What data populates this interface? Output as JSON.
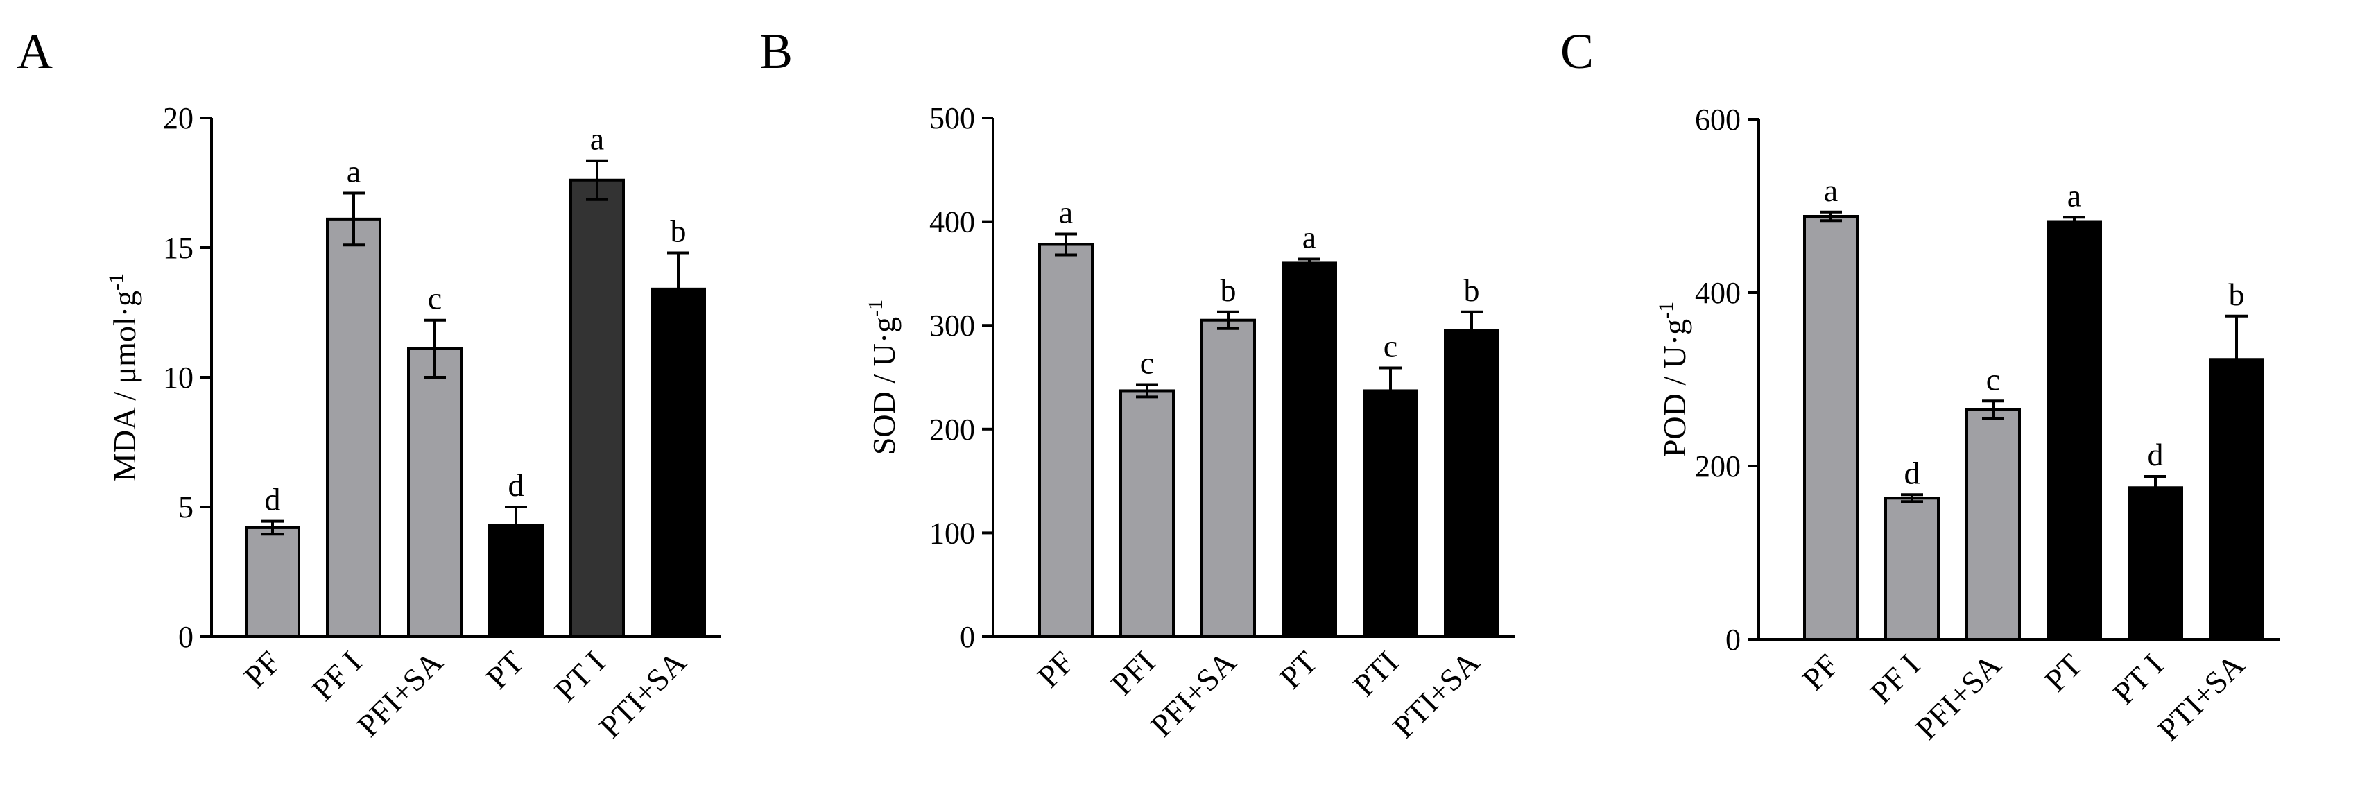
{
  "chart_data": [
    {
      "type": "bar",
      "panel_label": "A",
      "ylabel": "MDA / μmol·g",
      "ylabel_superscript": "-1",
      "categories": [
        "PF",
        "PF I",
        "PFI+SA",
        "PT",
        "PT I",
        "PTI+SA"
      ],
      "values": [
        4.2,
        16.1,
        11.1,
        4.3,
        17.6,
        13.4
      ],
      "errors": [
        0.25,
        1.0,
        1.1,
        0.7,
        0.75,
        1.4
      ],
      "significance": [
        "d",
        "a",
        "c",
        "d",
        "a",
        "b"
      ],
      "bar_colors": [
        "#a0a0a4",
        "#a0a0a4",
        "#a0a0a4",
        "#000000",
        "#333333",
        "#000000"
      ],
      "ylim": [
        0,
        20
      ],
      "yticks": [
        0,
        5,
        10,
        15,
        20
      ]
    },
    {
      "type": "bar",
      "panel_label": "B",
      "ylabel": "SOD / U·g",
      "ylabel_superscript": "-1",
      "categories": [
        "PF",
        "PFI",
        "PFI+SA",
        "PT",
        "PTI",
        "PTI+SA"
      ],
      "values": [
        378,
        237,
        305,
        360,
        237,
        295
      ],
      "errors": [
        10,
        6,
        8,
        4,
        22,
        18
      ],
      "significance": [
        "a",
        "c",
        "b",
        "a",
        "c",
        "b"
      ],
      "bar_colors": [
        "#a0a0a4",
        "#a0a0a4",
        "#a0a0a4",
        "#000000",
        "#000000",
        "#000000"
      ],
      "ylim": [
        0,
        500
      ],
      "yticks": [
        0,
        100,
        200,
        300,
        400,
        500
      ]
    },
    {
      "type": "bar",
      "panel_label": "C",
      "ylabel": "POD / U·g",
      "ylabel_superscript": "-1",
      "categories": [
        "PF",
        "PF I",
        "PFI+SA",
        "PT",
        "PT I",
        "PTI+SA"
      ],
      "values": [
        488,
        163,
        265,
        482,
        175,
        323
      ],
      "errors": [
        5,
        4,
        10,
        5,
        13,
        50
      ],
      "significance": [
        "a",
        "d",
        "c",
        "a",
        "d",
        "b"
      ],
      "bar_colors": [
        "#a0a0a4",
        "#a0a0a4",
        "#a0a0a4",
        "#000000",
        "#000000",
        "#000000"
      ],
      "ylim": [
        0,
        600
      ],
      "yticks": [
        0,
        200,
        400,
        600
      ]
    }
  ]
}
